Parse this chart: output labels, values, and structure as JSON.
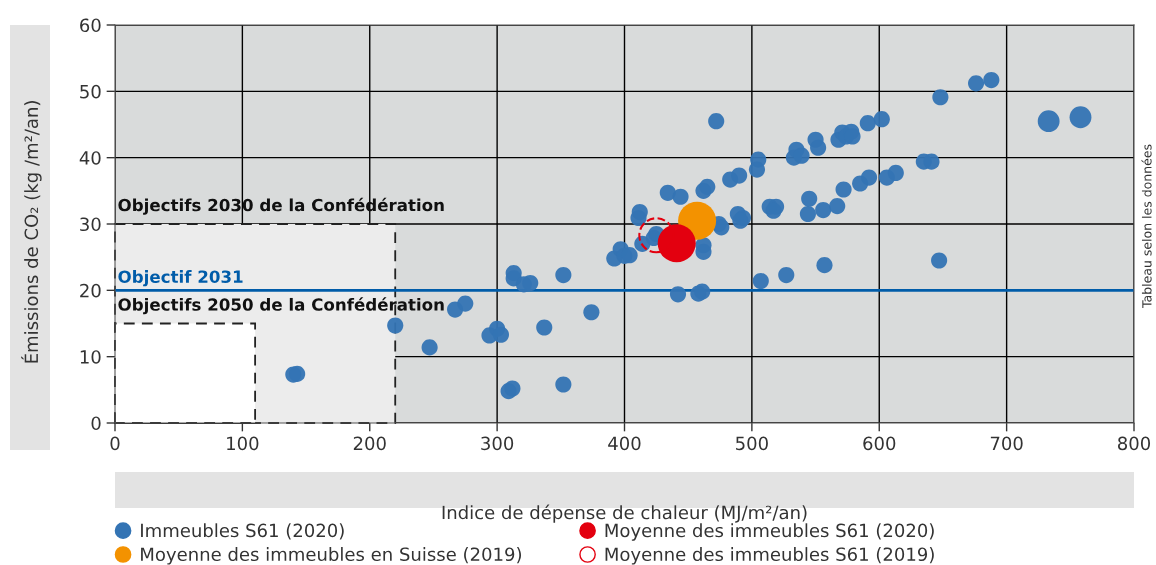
{
  "chart_data": {
    "type": "bubble",
    "xlabel": "Indice de dépense de chaleur (MJ/m²/an)",
    "ylabel": "Émissions de CO₂ (kg /m²/an)",
    "xlim": [
      0,
      800
    ],
    "xticks": [
      0,
      100,
      200,
      300,
      400,
      500,
      600,
      700,
      800
    ],
    "ylim": [
      0,
      60
    ],
    "yticks": [
      0,
      10,
      20,
      30,
      40,
      50,
      60
    ],
    "grid": true,
    "legend": "bottom",
    "marker": "circle",
    "series": [
      {
        "type": "area",
        "name": "Objectifs 2030 de la Confédération",
        "color": "#ececec",
        "x": [
          0,
          220
        ],
        "values": [
          30,
          30
        ],
        "line_style": "dashed",
        "marker": "none"
      },
      {
        "type": "area",
        "name": "Objectifs 2050 de la Confédération",
        "color": "#ffffff",
        "x": [
          0,
          110
        ],
        "values": [
          15,
          15
        ],
        "line_style": "dashed",
        "marker": "none"
      },
      {
        "name": "Immeubles S61 (2020)",
        "color": "#3474b4",
        "x": [
          140,
          143,
          220,
          247,
          267,
          275,
          294,
          300,
          303,
          309,
          312,
          313,
          313,
          321,
          326,
          337,
          352,
          352,
          374,
          392,
          397,
          400,
          404,
          411,
          412,
          414,
          423,
          425,
          434,
          444,
          442,
          458,
          461,
          472,
          462,
          465,
          483,
          490,
          505,
          504,
          489,
          493,
          491,
          474,
          476,
          462,
          462,
          514,
          519,
          517,
          545,
          544,
          556,
          567,
          572,
          585,
          592,
          606,
          613,
          635,
          641,
          533,
          535,
          539,
          550,
          552,
          568,
          571,
          574,
          578,
          579,
          591,
          602,
          648,
          676,
          688,
          733,
          758,
          647,
          557,
          527,
          507
        ],
        "values": [
          7.3,
          7.4,
          14.7,
          11.4,
          17.1,
          18.0,
          13.2,
          14.2,
          13.3,
          4.8,
          5.2,
          22.6,
          21.8,
          20.9,
          21.1,
          14.4,
          5.8,
          22.3,
          16.7,
          24.8,
          26.2,
          25.2,
          25.3,
          30.9,
          31.8,
          27.0,
          27.9,
          28.5,
          34.7,
          34.1,
          19.4,
          19.5,
          19.8,
          45.5,
          35.0,
          35.6,
          36.7,
          37.3,
          39.7,
          38.2,
          31.5,
          30.9,
          30.5,
          30.0,
          29.5,
          26.8,
          25.8,
          32.6,
          32.6,
          32.0,
          33.8,
          31.5,
          32.1,
          32.7,
          35.2,
          36.1,
          37.0,
          37.0,
          37.7,
          39.4,
          39.4,
          40.0,
          41.2,
          40.3,
          42.7,
          41.5,
          42.7,
          43.8,
          43.2,
          43.9,
          43.2,
          45.2,
          45.8,
          49.1,
          51.2,
          51.7,
          45.5,
          46.1,
          24.5,
          23.8,
          22.3,
          21.4
        ],
        "sizes": [
          0.18,
          0.18,
          0.18,
          0.18,
          0.18,
          0.18,
          0.18,
          0.18,
          0.18,
          0.18,
          0.18,
          0.18,
          0.18,
          0.18,
          0.18,
          0.18,
          0.18,
          0.18,
          0.18,
          0.18,
          0.18,
          0.18,
          0.18,
          0.18,
          0.18,
          0.18,
          0.18,
          0.18,
          0.18,
          0.18,
          0.18,
          0.18,
          0.18,
          0.18,
          0.18,
          0.18,
          0.18,
          0.18,
          0.18,
          0.18,
          0.18,
          0.18,
          0.18,
          0.18,
          0.18,
          0.18,
          0.18,
          0.18,
          0.18,
          0.18,
          0.18,
          0.18,
          0.18,
          0.18,
          0.18,
          0.18,
          0.18,
          0.18,
          0.18,
          0.18,
          0.18,
          0.18,
          0.18,
          0.18,
          0.18,
          0.18,
          0.18,
          0.18,
          0.18,
          0.18,
          0.18,
          0.18,
          0.18,
          0.18,
          0.18,
          0.18,
          0.33,
          0.33,
          0.18,
          0.18,
          0.18,
          0.18
        ]
      },
      {
        "name": "Moyenne des immeubles en Suisse (2019)",
        "color": "#f39200",
        "x": [
          457
        ],
        "values": [
          30.5
        ],
        "sizes": [
          1
        ]
      },
      {
        "name": "Moyenne des immeubles S61 (2020)",
        "color": "#e3000f",
        "x": [
          441
        ],
        "values": [
          27.1
        ],
        "sizes": [
          1
        ]
      },
      {
        "name": "Moyenne des immeubles S61 (2019)",
        "color": "#e3000f",
        "x": [
          425
        ],
        "values": [
          28.3
        ],
        "sizes": [
          0.8
        ],
        "line_style": "dashed"
      }
    ],
    "ref_lines": [
      {
        "axis": "y",
        "value": 20,
        "label": "Objectif 2031",
        "color": "#005ca9"
      }
    ],
    "annotations": [
      "Tableau selon les données"
    ]
  }
}
